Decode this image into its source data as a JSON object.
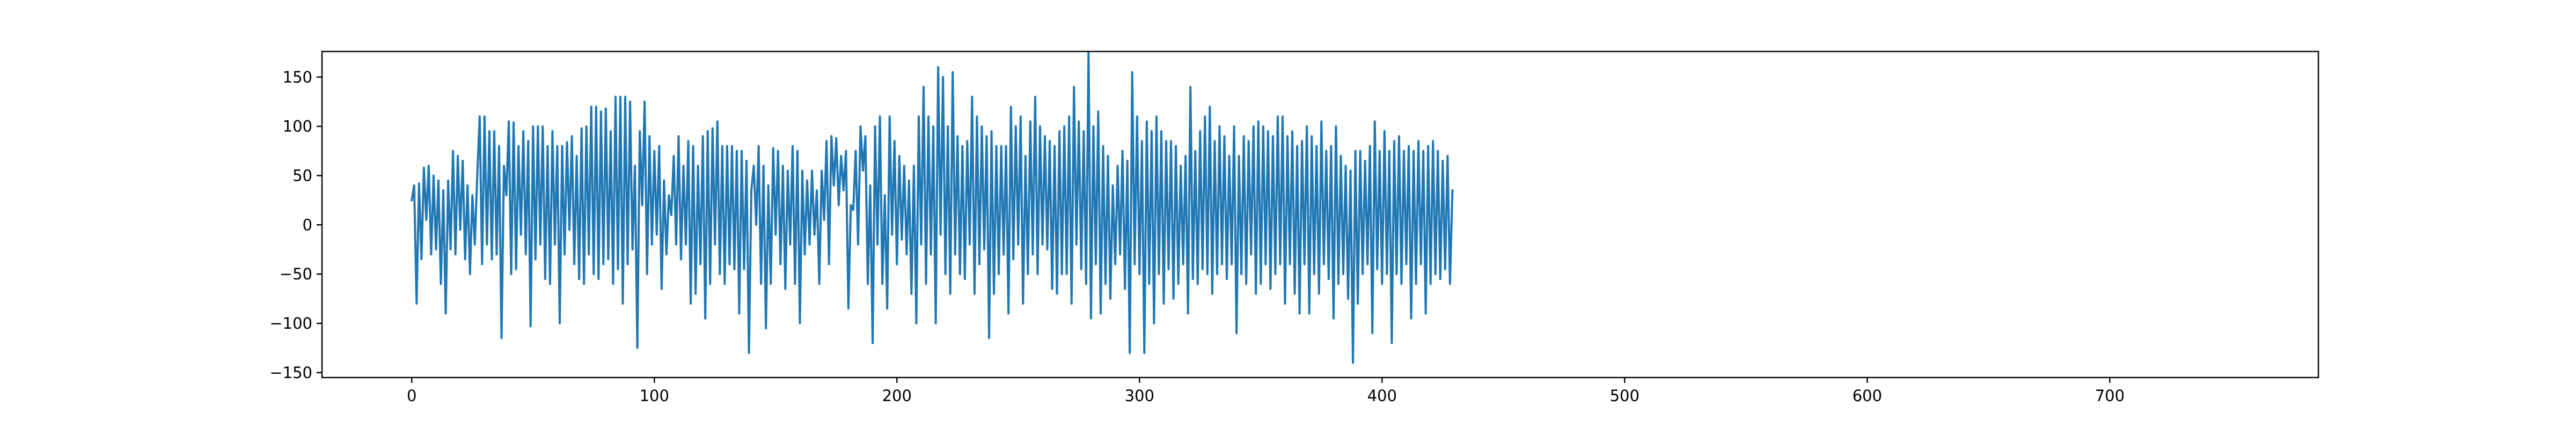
{
  "chart_data": {
    "type": "line",
    "title": "",
    "xlabel": "",
    "ylabel": "",
    "xlim": [
      -37,
      786
    ],
    "ylim": [
      -155,
      176
    ],
    "x_ticks": [
      0,
      100,
      200,
      300,
      400,
      500,
      600,
      700
    ],
    "y_ticks": [
      -150,
      -100,
      -50,
      0,
      50,
      100,
      150
    ],
    "grid": false,
    "legend": "none",
    "series": [
      {
        "color": "#1f77b4",
        "x_start": 0,
        "x_step": 1,
        "values": [
          25,
          40,
          -80,
          42,
          -35,
          58,
          5,
          60,
          -30,
          50,
          -25,
          45,
          -60,
          35,
          -90,
          45,
          -25,
          75,
          -30,
          70,
          -5,
          65,
          -35,
          40,
          -50,
          30,
          -20,
          50,
          110,
          -40,
          110,
          -20,
          95,
          -35,
          95,
          -30,
          80,
          -115,
          60,
          30,
          105,
          -50,
          104,
          -45,
          80,
          -10,
          95,
          -30,
          85,
          -103,
          100,
          -35,
          100,
          -20,
          100,
          -55,
          80,
          -60,
          95,
          -20,
          80,
          -100,
          80,
          -30,
          84,
          -5,
          90,
          -40,
          70,
          -55,
          98,
          -60,
          100,
          -30,
          120,
          -50,
          120,
          -55,
          115,
          -40,
          118,
          -35,
          95,
          -60,
          130,
          -45,
          130,
          -80,
          130,
          -40,
          125,
          -25,
          60,
          -125,
          95,
          20,
          125,
          -50,
          90,
          -20,
          75,
          -10,
          80,
          -65,
          45,
          -30,
          30,
          10,
          70,
          -20,
          90,
          -35,
          60,
          -20,
          85,
          -80,
          80,
          -70,
          60,
          -40,
          90,
          -95,
          95,
          -60,
          98,
          -20,
          105,
          -50,
          80,
          -60,
          80,
          -40,
          80,
          -45,
          75,
          -90,
          75,
          -45,
          65,
          -130,
          35,
          60,
          0,
          80,
          -60,
          60,
          -105,
          40,
          -60,
          78,
          -10,
          75,
          -40,
          60,
          -65,
          55,
          -20,
          80,
          -60,
          75,
          -100,
          55,
          -30,
          45,
          -20,
          55,
          -10,
          35,
          -60,
          55,
          5,
          85,
          -40,
          90,
          40,
          88,
          20,
          70,
          35,
          75,
          -85,
          20,
          15,
          75,
          -20,
          100,
          55,
          90,
          -60,
          40,
          -120,
          100,
          -20,
          110,
          -60,
          30,
          -85,
          110,
          -10,
          85,
          -40,
          70,
          -15,
          60,
          -30,
          45,
          -70,
          60,
          -100,
          110,
          -20,
          140,
          -60,
          110,
          -30,
          100,
          -100,
          160,
          -10,
          150,
          -50,
          100,
          -70,
          155,
          -30,
          90,
          -50,
          80,
          -55,
          85,
          -20,
          130,
          -70,
          110,
          -40,
          100,
          -25,
          90,
          -115,
          95,
          -70,
          80,
          -50,
          80,
          -30,
          80,
          -90,
          120,
          -35,
          100,
          -20,
          110,
          -80,
          70,
          -50,
          105,
          -30,
          130,
          -50,
          100,
          -20,
          90,
          -25,
          85,
          -65,
          80,
          -70,
          95,
          -50,
          100,
          -50,
          110,
          -80,
          140,
          -20,
          105,
          -45,
          95,
          -60,
          175,
          -95,
          100,
          -40,
          115,
          -90,
          80,
          -60,
          70,
          -75,
          40,
          -40,
          60,
          -30,
          75,
          -65,
          65,
          -130,
          155,
          -40,
          110,
          -50,
          85,
          -130,
          105,
          -60,
          95,
          -100,
          110,
          -50,
          95,
          -80,
          85,
          -45,
          85,
          -75,
          80,
          -60,
          60,
          -40,
          70,
          -90,
          140,
          -55,
          75,
          -60,
          95,
          -45,
          110,
          -50,
          120,
          -70,
          85,
          -50,
          100,
          -40,
          90,
          -55,
          70,
          -40,
          100,
          -110,
          70,
          -50,
          90,
          -60,
          85,
          -30,
          100,
          -70,
          105,
          -60,
          100,
          -40,
          95,
          -65,
          90,
          -50,
          110,
          -40,
          110,
          -80,
          90,
          -40,
          95,
          -70,
          80,
          -90,
          85,
          -40,
          100,
          -90,
          90,
          -50,
          80,
          -70,
          105,
          -40,
          75,
          -55,
          80,
          -95,
          100,
          -60,
          70,
          -50,
          60,
          -75,
          55,
          -140,
          75,
          -80,
          75,
          -50,
          65,
          -40,
          80,
          -110,
          105,
          -45,
          75,
          -60,
          95,
          -50,
          75,
          -120,
          85,
          -50,
          90,
          -60,
          75,
          -40,
          80,
          -95,
          75,
          -60,
          85,
          -40,
          75,
          -90,
          80,
          -60,
          85,
          -50,
          75,
          -55,
          65,
          -45,
          70,
          -60,
          35
        ]
      }
    ]
  }
}
